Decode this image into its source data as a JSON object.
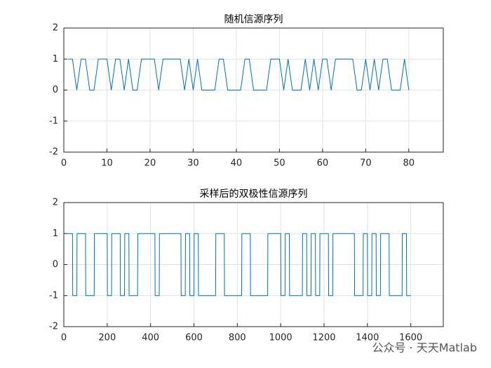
{
  "chart_data": [
    {
      "type": "line",
      "title": "随机信源序列",
      "color": "#0072bd",
      "grid": true,
      "x": [
        1,
        2,
        3,
        4,
        5,
        6,
        7,
        8,
        9,
        10,
        11,
        12,
        13,
        14,
        15,
        16,
        17,
        18,
        19,
        20,
        21,
        22,
        23,
        24,
        25,
        26,
        27,
        28,
        29,
        30,
        31,
        32,
        33,
        34,
        35,
        36,
        37,
        38,
        39,
        40,
        41,
        42,
        43,
        44,
        45,
        46,
        47,
        48,
        49,
        50,
        51,
        52,
        53,
        54,
        55,
        56,
        57,
        58,
        59,
        60,
        61,
        62,
        63,
        64,
        65,
        66,
        67,
        68,
        69,
        70,
        71,
        72,
        73,
        74,
        75,
        76,
        77,
        78,
        79,
        80
      ],
      "values": [
        1,
        1,
        0,
        1,
        1,
        0,
        0,
        1,
        1,
        1,
        0,
        1,
        1,
        0,
        1,
        0,
        0,
        1,
        1,
        1,
        1,
        0,
        1,
        1,
        1,
        1,
        1,
        0,
        1,
        0,
        1,
        0,
        0,
        0,
        0,
        1,
        1,
        0,
        0,
        0,
        0,
        1,
        1,
        0,
        0,
        0,
        0,
        1,
        1,
        1,
        0,
        1,
        0,
        0,
        0,
        1,
        0,
        1,
        0,
        1,
        1,
        0,
        1,
        1,
        1,
        1,
        1,
        0,
        0,
        1,
        0,
        1,
        0,
        1,
        1,
        0,
        0,
        0,
        1,
        0
      ],
      "xlim": [
        0,
        88
      ],
      "xticks": [
        0,
        10,
        20,
        30,
        40,
        50,
        60,
        70,
        80
      ],
      "ylim": [
        -2,
        2
      ],
      "yticks": [
        -2,
        -1,
        0,
        1,
        2
      ]
    },
    {
      "type": "line",
      "title": "采样后的双极性信源序列",
      "color": "#0072bd",
      "grid": true,
      "x": [
        1,
        20,
        21,
        40,
        41,
        60,
        61,
        80,
        81,
        100,
        101,
        120,
        121,
        140,
        141,
        160,
        161,
        180,
        181,
        200,
        201,
        220,
        221,
        240,
        241,
        260,
        261,
        280,
        281,
        300,
        301,
        320,
        321,
        340,
        341,
        360,
        361,
        380,
        381,
        400,
        401,
        420,
        421,
        440,
        441,
        460,
        461,
        480,
        481,
        500,
        501,
        520,
        521,
        540,
        541,
        560,
        561,
        580,
        581,
        600,
        601,
        620,
        621,
        640,
        641,
        660,
        661,
        680,
        681,
        700,
        701,
        720,
        721,
        740,
        741,
        760,
        761,
        780,
        781,
        800,
        801,
        820,
        821,
        840,
        841,
        860,
        861,
        880,
        881,
        900,
        901,
        920,
        921,
        940,
        941,
        960,
        961,
        980,
        981,
        1000,
        1001,
        1020,
        1021,
        1040,
        1041,
        1060,
        1061,
        1080,
        1081,
        1100,
        1101,
        1120,
        1121,
        1140,
        1141,
        1160,
        1161,
        1180,
        1181,
        1200,
        1201,
        1220,
        1221,
        1240,
        1241,
        1260,
        1261,
        1280,
        1281,
        1300,
        1301,
        1320,
        1321,
        1340,
        1341,
        1360,
        1361,
        1380,
        1381,
        1400,
        1401,
        1420,
        1421,
        1440,
        1441,
        1460,
        1461,
        1480,
        1481,
        1500,
        1501,
        1520,
        1521,
        1540,
        1541,
        1560,
        1561,
        1580,
        1581,
        1600
      ],
      "values": [
        1,
        1,
        1,
        1,
        -1,
        -1,
        1,
        1,
        1,
        1,
        -1,
        -1,
        -1,
        -1,
        1,
        1,
        1,
        1,
        1,
        1,
        -1,
        -1,
        1,
        1,
        1,
        1,
        -1,
        -1,
        1,
        1,
        -1,
        -1,
        -1,
        -1,
        1,
        1,
        1,
        1,
        1,
        1,
        1,
        1,
        -1,
        -1,
        1,
        1,
        1,
        1,
        1,
        1,
        1,
        1,
        1,
        1,
        -1,
        -1,
        1,
        1,
        -1,
        -1,
        1,
        1,
        -1,
        -1,
        -1,
        -1,
        -1,
        -1,
        -1,
        -1,
        1,
        1,
        1,
        1,
        -1,
        -1,
        -1,
        -1,
        -1,
        -1,
        -1,
        -1,
        1,
        1,
        1,
        1,
        -1,
        -1,
        -1,
        -1,
        -1,
        -1,
        -1,
        -1,
        1,
        1,
        1,
        1,
        1,
        1,
        -1,
        -1,
        1,
        1,
        -1,
        -1,
        -1,
        -1,
        -1,
        -1,
        1,
        1,
        -1,
        -1,
        1,
        1,
        -1,
        -1,
        1,
        1,
        1,
        1,
        -1,
        -1,
        1,
        1,
        1,
        1,
        1,
        1,
        1,
        1,
        1,
        1,
        -1,
        -1,
        -1,
        -1,
        1,
        1,
        -1,
        -1,
        1,
        1,
        -1,
        -1,
        1,
        1,
        1,
        1,
        -1,
        -1,
        -1,
        -1,
        -1,
        -1,
        1,
        1,
        -1,
        -1
      ],
      "xlim": [
        0,
        1750
      ],
      "xticks": [
        0,
        200,
        400,
        600,
        800,
        1000,
        1200,
        1400,
        1600
      ],
      "ylim": [
        -2,
        2
      ],
      "yticks": [
        -2,
        -1,
        0,
        1,
        2
      ]
    }
  ],
  "watermark": "公众号 · 天天Matlab"
}
